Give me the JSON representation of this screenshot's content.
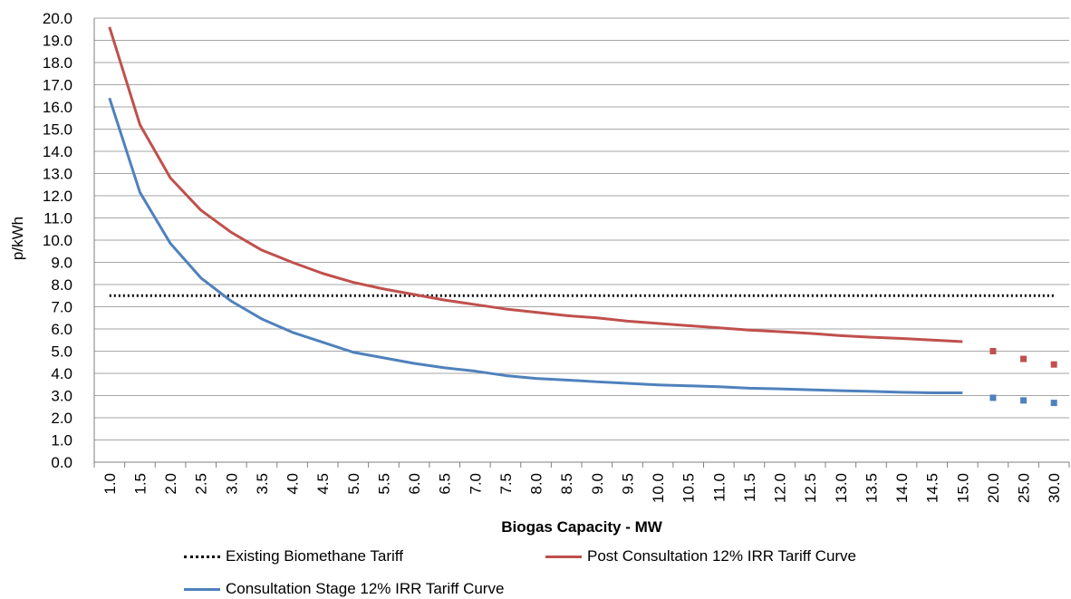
{
  "chart_data": {
    "type": "line",
    "xlabel": "Biogas Capacity - MW",
    "ylabel": "p/kWh",
    "ylim": [
      0,
      20
    ],
    "ytick_step": 1,
    "grid": "horizontal",
    "legend_position": "bottom",
    "categories": [
      "1.0",
      "1.5",
      "2.0",
      "2.5",
      "3.0",
      "3.5",
      "4.0",
      "4.5",
      "5.0",
      "5.5",
      "6.0",
      "6.5",
      "7.0",
      "7.5",
      "8.0",
      "8.5",
      "9.0",
      "9.5",
      "10.0",
      "10.5",
      "11.0",
      "11.5",
      "12.0",
      "12.5",
      "13.0",
      "13.5",
      "14.0",
      "14.5",
      "15.0",
      "20.0",
      "25.0",
      "30.0"
    ],
    "series": [
      {
        "name": "Existing Biomethane Tariff",
        "color": "#000000",
        "style": "dotted",
        "values": [
          7.5,
          7.5,
          7.5,
          7.5,
          7.5,
          7.5,
          7.5,
          7.5,
          7.5,
          7.5,
          7.5,
          7.5,
          7.5,
          7.5,
          7.5,
          7.5,
          7.5,
          7.5,
          7.5,
          7.5,
          7.5,
          7.5,
          7.5,
          7.5,
          7.5,
          7.5,
          7.5,
          7.5,
          7.5,
          7.5,
          7.5,
          7.5
        ]
      },
      {
        "name": "Post Consultation 12% IRR Tariff Curve",
        "color": "#C0504D",
        "style": "solid",
        "values": [
          19.6,
          15.2,
          12.8,
          11.35,
          10.35,
          9.55,
          9.0,
          8.5,
          8.1,
          7.8,
          7.55,
          7.3,
          7.1,
          6.9,
          6.75,
          6.6,
          6.5,
          6.35,
          6.25,
          6.15,
          6.05,
          5.95,
          5.88,
          5.8,
          5.7,
          5.63,
          5.57,
          5.5,
          5.43,
          5.0,
          4.65,
          4.4
        ]
      },
      {
        "name": "Consultation Stage 12% IRR Tariff Curve",
        "color": "#4F81BD",
        "style": "solid",
        "values": [
          16.4,
          12.15,
          9.85,
          8.3,
          7.25,
          6.45,
          5.85,
          5.4,
          4.95,
          4.7,
          4.45,
          4.25,
          4.1,
          3.9,
          3.77,
          3.7,
          3.62,
          3.55,
          3.48,
          3.44,
          3.4,
          3.33,
          3.3,
          3.26,
          3.22,
          3.19,
          3.15,
          3.12,
          3.12,
          2.9,
          2.78,
          2.67
        ]
      }
    ],
    "disconnected_from_index": 29
  }
}
